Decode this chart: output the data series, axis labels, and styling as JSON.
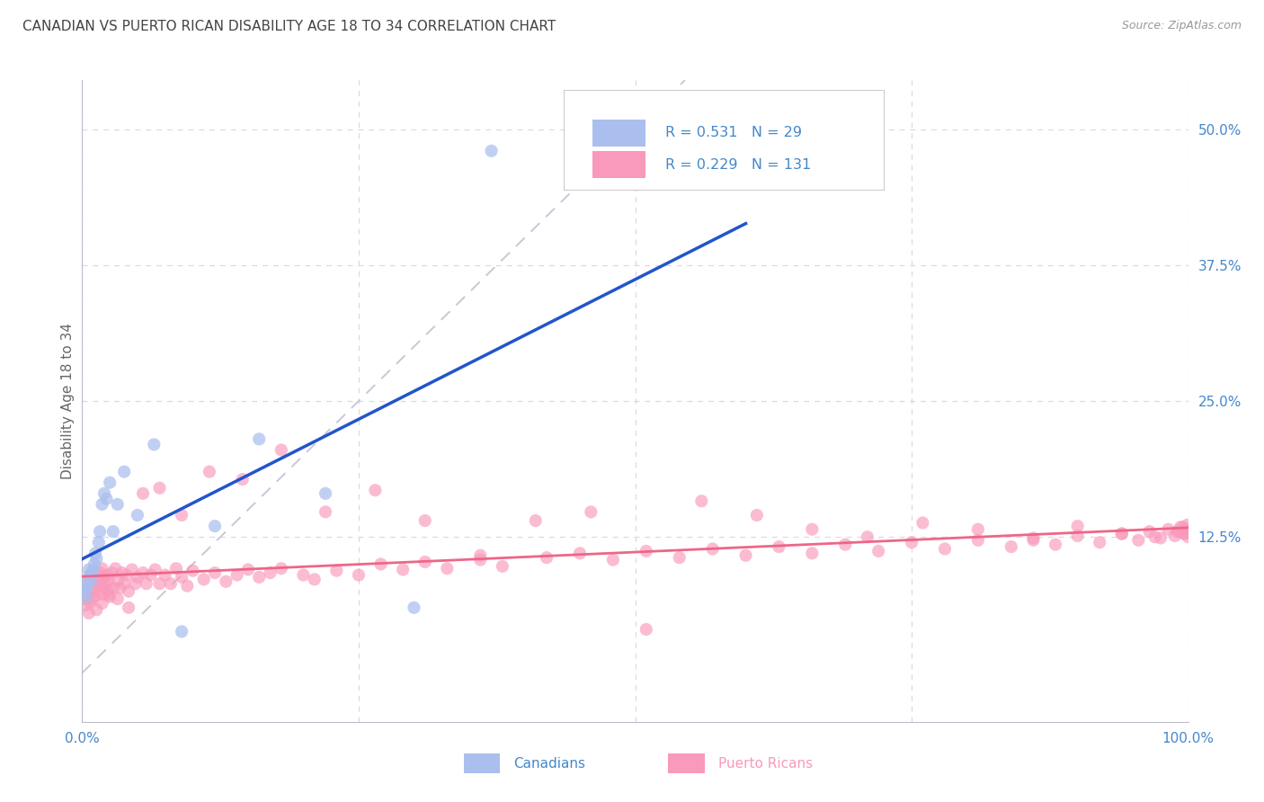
{
  "title": "CANADIAN VS PUERTO RICAN DISABILITY AGE 18 TO 34 CORRELATION CHART",
  "source": "Source: ZipAtlas.com",
  "ylabel": "Disability Age 18 to 34",
  "xlim": [
    0.0,
    1.0
  ],
  "ylim": [
    -0.045,
    0.545
  ],
  "ytick_labels": [
    "12.5%",
    "25.0%",
    "37.5%",
    "50.0%"
  ],
  "ytick_positions": [
    0.125,
    0.25,
    0.375,
    0.5
  ],
  "background_color": "#ffffff",
  "grid_color": "#d8d8e8",
  "title_color": "#444444",
  "axis_tick_color": "#4488cc",
  "canadian_scatter_color": "#aabfee",
  "puerto_rican_scatter_color": "#f999bb",
  "canadian_line_color": "#2255cc",
  "puerto_rican_line_color": "#ee6688",
  "diagonal_color": "#c8c8d8",
  "R_canadian": 0.531,
  "N_canadian": 29,
  "R_puerto_rican": 0.229,
  "N_puerto_rican": 131,
  "canadian_x": [
    0.002,
    0.003,
    0.004,
    0.005,
    0.006,
    0.007,
    0.008,
    0.009,
    0.01,
    0.011,
    0.012,
    0.013,
    0.015,
    0.016,
    0.018,
    0.02,
    0.022,
    0.025,
    0.028,
    0.032,
    0.038,
    0.05,
    0.065,
    0.09,
    0.12,
    0.16,
    0.22,
    0.3,
    0.37
  ],
  "canadian_y": [
    0.075,
    0.08,
    0.07,
    0.08,
    0.095,
    0.09,
    0.085,
    0.092,
    0.095,
    0.1,
    0.11,
    0.105,
    0.12,
    0.13,
    0.155,
    0.165,
    0.16,
    0.175,
    0.13,
    0.155,
    0.185,
    0.145,
    0.21,
    0.038,
    0.135,
    0.215,
    0.165,
    0.06,
    0.48
  ],
  "puerto_rican_x": [
    0.002,
    0.003,
    0.004,
    0.005,
    0.006,
    0.007,
    0.008,
    0.009,
    0.01,
    0.011,
    0.012,
    0.013,
    0.014,
    0.015,
    0.016,
    0.017,
    0.018,
    0.019,
    0.02,
    0.021,
    0.022,
    0.023,
    0.024,
    0.025,
    0.027,
    0.028,
    0.03,
    0.032,
    0.034,
    0.036,
    0.038,
    0.04,
    0.042,
    0.045,
    0.048,
    0.05,
    0.055,
    0.058,
    0.062,
    0.066,
    0.07,
    0.075,
    0.08,
    0.085,
    0.09,
    0.095,
    0.1,
    0.11,
    0.12,
    0.13,
    0.14,
    0.15,
    0.16,
    0.17,
    0.18,
    0.2,
    0.21,
    0.23,
    0.25,
    0.27,
    0.29,
    0.31,
    0.33,
    0.36,
    0.38,
    0.42,
    0.45,
    0.48,
    0.51,
    0.54,
    0.57,
    0.6,
    0.63,
    0.66,
    0.69,
    0.72,
    0.75,
    0.78,
    0.81,
    0.84,
    0.86,
    0.88,
    0.9,
    0.92,
    0.94,
    0.955,
    0.965,
    0.975,
    0.982,
    0.988,
    0.992,
    0.995,
    0.997,
    0.999,
    1.0,
    1.0,
    0.998,
    0.996,
    0.993,
    0.99,
    0.003,
    0.006,
    0.009,
    0.013,
    0.018,
    0.024,
    0.032,
    0.042,
    0.055,
    0.07,
    0.09,
    0.115,
    0.145,
    0.18,
    0.22,
    0.265,
    0.31,
    0.36,
    0.41,
    0.46,
    0.51,
    0.56,
    0.61,
    0.66,
    0.71,
    0.76,
    0.81,
    0.86,
    0.9,
    0.94,
    0.97
  ],
  "puerto_rican_y": [
    0.078,
    0.068,
    0.082,
    0.072,
    0.088,
    0.065,
    0.09,
    0.075,
    0.085,
    0.07,
    0.092,
    0.08,
    0.086,
    0.075,
    0.092,
    0.08,
    0.096,
    0.072,
    0.088,
    0.082,
    0.09,
    0.076,
    0.084,
    0.07,
    0.092,
    0.078,
    0.096,
    0.085,
    0.078,
    0.092,
    0.082,
    0.09,
    0.075,
    0.095,
    0.082,
    0.088,
    0.092,
    0.082,
    0.09,
    0.095,
    0.082,
    0.09,
    0.082,
    0.096,
    0.088,
    0.08,
    0.094,
    0.086,
    0.092,
    0.084,
    0.09,
    0.095,
    0.088,
    0.092,
    0.096,
    0.09,
    0.086,
    0.094,
    0.09,
    0.1,
    0.095,
    0.102,
    0.096,
    0.104,
    0.098,
    0.106,
    0.11,
    0.104,
    0.112,
    0.106,
    0.114,
    0.108,
    0.116,
    0.11,
    0.118,
    0.112,
    0.12,
    0.114,
    0.122,
    0.116,
    0.124,
    0.118,
    0.126,
    0.12,
    0.128,
    0.122,
    0.13,
    0.124,
    0.132,
    0.126,
    0.13,
    0.134,
    0.128,
    0.136,
    0.13,
    0.125,
    0.132,
    0.128,
    0.134,
    0.13,
    0.062,
    0.055,
    0.068,
    0.058,
    0.064,
    0.072,
    0.068,
    0.06,
    0.165,
    0.17,
    0.145,
    0.185,
    0.178,
    0.205,
    0.148,
    0.168,
    0.14,
    0.108,
    0.14,
    0.148,
    0.04,
    0.158,
    0.145,
    0.132,
    0.125,
    0.138,
    0.132,
    0.122,
    0.135,
    0.128,
    0.125
  ]
}
